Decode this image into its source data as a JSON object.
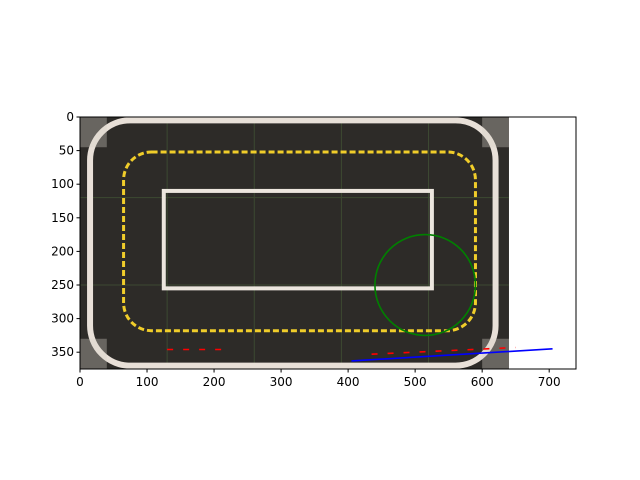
{
  "chart_data": {
    "type": "scatter",
    "background": "image",
    "xlim": [
      0,
      740
    ],
    "ylim": [
      375,
      0
    ],
    "image_extent": {
      "x": [
        0,
        640
      ],
      "y": [
        0,
        375
      ]
    },
    "xticks": [
      0,
      100,
      200,
      300,
      400,
      500,
      600,
      700
    ],
    "yticks": [
      0,
      50,
      100,
      150,
      200,
      250,
      300,
      350
    ],
    "overlays": {
      "circle": {
        "center": [
          515,
          250
        ],
        "radius": 75,
        "color": "#008000"
      },
      "blue_line": {
        "x": [
          405,
          705
        ],
        "y": [
          363,
          345
        ],
        "color": "#0000ff"
      },
      "red_dashes_left": {
        "x": [
          130,
          225
        ],
        "y": [
          346,
          346
        ],
        "color": "#ff0000"
      },
      "red_dashes_right": {
        "x": [
          435,
          650
        ],
        "y": [
          353,
          343
        ],
        "color": "#ff0000"
      }
    }
  }
}
